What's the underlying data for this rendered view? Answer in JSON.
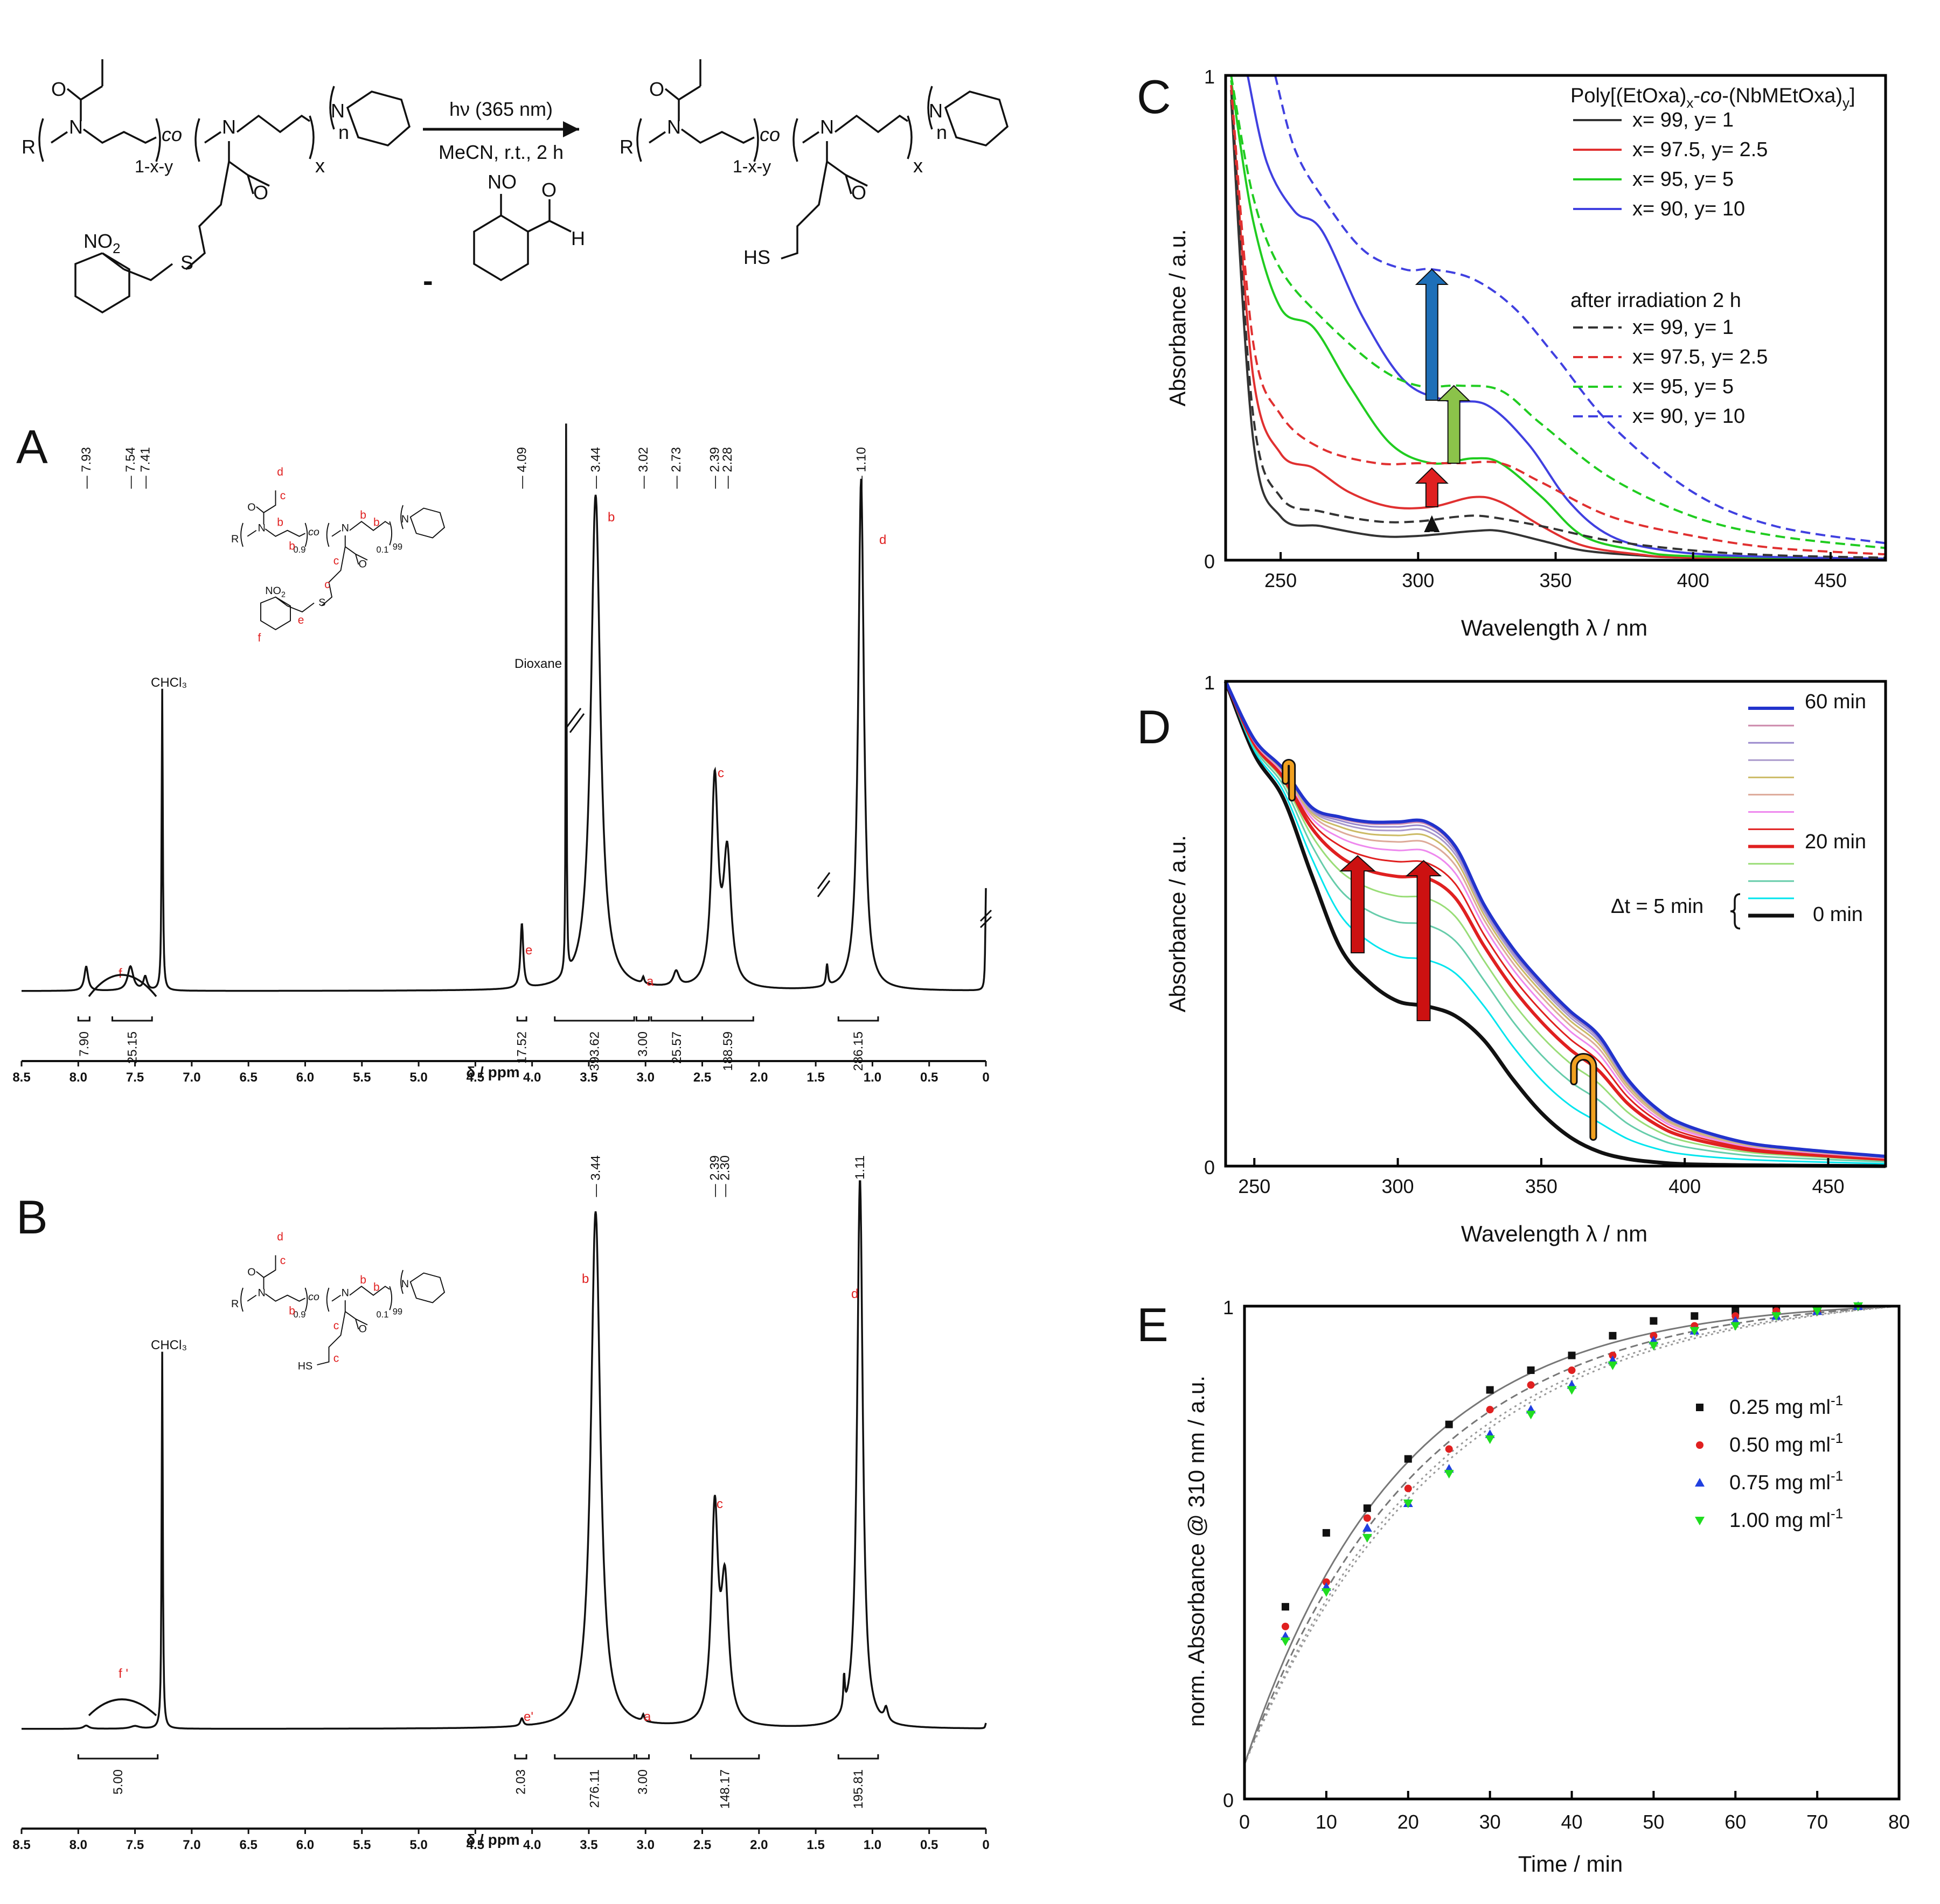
{
  "scheme": {
    "conditions_top": "hν (365 nm)",
    "conditions_bottom": "MeCN, r.t., 2 h",
    "byproduct_sign": "-",
    "labels": {
      "R": "R",
      "co": "co",
      "n": "n",
      "x": "x",
      "N": "N",
      "O": "O",
      "S": "S",
      "NO2": "NO",
      "NO2_sub": "2",
      "NO": "NO",
      "H": "H",
      "HS": "HS",
      "sub_1xy": "1-x-y"
    }
  },
  "panel_labels": {
    "A": "A",
    "B": "B",
    "C": "C",
    "D": "D",
    "E": "E"
  },
  "nmr_A": {
    "peak_labels_top": [
      "7.93",
      "7.54",
      "7.41",
      "4.09",
      "3.44",
      "3.02",
      "2.73",
      "2.39",
      "2.28",
      "1.10"
    ],
    "integrals": [
      "7.90",
      "25.15",
      "17.52",
      "393.62",
      "3.00",
      "25.57",
      "188.59",
      "286.15"
    ],
    "solvent_labels": [
      "CHCl₃",
      "Dioxane"
    ],
    "assignments": [
      "f",
      "e",
      "b",
      "a",
      "c",
      "d"
    ],
    "struct": {
      "sub1": "0.9",
      "sub2": "0.1",
      "sub3": "99",
      "labels": [
        "d",
        "c",
        "b",
        "b",
        "b",
        "b",
        "c",
        "c",
        "e",
        "f"
      ]
    },
    "x_ticks": [
      "8.5",
      "8.0",
      "7.5",
      "7.0",
      "6.5",
      "6.0",
      "5.5",
      "5.0",
      "4.5",
      "4.0",
      "3.5",
      "3.0",
      "2.5",
      "2.0",
      "1.5",
      "1.0",
      "0.5",
      "0"
    ],
    "x_label": "δ / ppm"
  },
  "nmr_B": {
    "peak_labels_top": [
      "3.44",
      "2.39",
      "2.30",
      "1.11"
    ],
    "integrals": [
      "5.00",
      "2.03",
      "276.11",
      "3.00",
      "148.17",
      "195.81"
    ],
    "solvent_labels": [
      "CHCl₃"
    ],
    "assignments": [
      "f '",
      "e'",
      "b",
      "a",
      "c",
      "d"
    ],
    "struct": {
      "sub1": "0.9",
      "sub2": "0.1",
      "sub3": "99",
      "labels": [
        "d",
        "c",
        "b",
        "b",
        "b",
        "c",
        "c"
      ]
    },
    "x_ticks": [
      "8.5",
      "8.0",
      "7.5",
      "7.0",
      "6.5",
      "6.0",
      "5.5",
      "5.0",
      "4.5",
      "4.0",
      "3.5",
      "3.0",
      "2.5",
      "2.0",
      "1.5",
      "1.0",
      "0.5",
      "0"
    ],
    "x_label": "δ / ppm"
  },
  "chart_data": [
    {
      "id": "C",
      "type": "line",
      "xlabel": "Wavelength λ / nm",
      "ylabel": "Absorbance / a.u.",
      "xlim": [
        230,
        470
      ],
      "ylim": [
        0,
        1
      ],
      "x_ticks": [
        "250",
        "300",
        "350",
        "400",
        "450"
      ],
      "y_ticks": [
        "0",
        "1"
      ],
      "legend_title": "Poly[(EtOxa)x-co-(NbMEtOxa)y]",
      "legend_title_parts": [
        "Poly[(EtOxa)",
        "x",
        "-",
        "co",
        "-(NbMEtOxa)",
        "y",
        "]"
      ],
      "legend_subtitle": "after irradiation 2 h",
      "series": [
        {
          "name": "x= 99,    y= 1",
          "color": "#333333",
          "dash": false,
          "x": [
            232,
            240,
            250,
            265,
            285,
            300,
            320,
            330,
            345,
            360,
            380,
            400,
            470
          ],
          "y": [
            0.95,
            0.25,
            0.09,
            0.07,
            0.05,
            0.05,
            0.06,
            0.06,
            0.04,
            0.02,
            0.01,
            0.005,
            0.002
          ]
        },
        {
          "name": "x= 97.5, y= 2.5",
          "color": "#e03030",
          "dash": false,
          "x": [
            232,
            240,
            250,
            262,
            275,
            290,
            305,
            320,
            330,
            345,
            360,
            380,
            400,
            470
          ],
          "y": [
            0.97,
            0.38,
            0.22,
            0.19,
            0.14,
            0.11,
            0.11,
            0.13,
            0.12,
            0.07,
            0.03,
            0.012,
            0.005,
            0.002
          ]
        },
        {
          "name": "x= 95,    y= 5",
          "color": "#20cc20",
          "dash": false,
          "x": [
            232,
            240,
            250,
            262,
            275,
            290,
            305,
            320,
            330,
            345,
            360,
            380,
            400,
            470
          ],
          "y": [
            0.99,
            0.7,
            0.52,
            0.48,
            0.36,
            0.24,
            0.2,
            0.21,
            0.2,
            0.13,
            0.05,
            0.02,
            0.008,
            0.003
          ]
        },
        {
          "name": "x= 90,    y= 10",
          "color": "#4040e0",
          "dash": false,
          "x": [
            238,
            245,
            255,
            265,
            280,
            295,
            310,
            325,
            340,
            355,
            370,
            390,
            420,
            470
          ],
          "y": [
            1.0,
            0.82,
            0.72,
            0.68,
            0.5,
            0.37,
            0.33,
            0.32,
            0.24,
            0.12,
            0.05,
            0.02,
            0.008,
            0.003
          ]
        },
        {
          "name": "x= 99,    y= 1",
          "color": "#333333",
          "dash": true,
          "x": [
            232,
            240,
            250,
            265,
            285,
            300,
            315,
            325,
            345,
            370,
            400,
            430,
            470
          ],
          "y": [
            0.97,
            0.3,
            0.13,
            0.1,
            0.08,
            0.08,
            0.09,
            0.09,
            0.07,
            0.04,
            0.02,
            0.01,
            0.005
          ]
        },
        {
          "name": "x= 97.5, y= 2.5",
          "color": "#e03030",
          "dash": true,
          "x": [
            232,
            240,
            250,
            265,
            285,
            300,
            315,
            330,
            345,
            370,
            400,
            430,
            470
          ],
          "y": [
            0.98,
            0.45,
            0.3,
            0.23,
            0.2,
            0.2,
            0.2,
            0.2,
            0.16,
            0.09,
            0.05,
            0.025,
            0.012
          ]
        },
        {
          "name": "x= 95,    y= 5",
          "color": "#20cc20",
          "dash": true,
          "x": [
            232,
            240,
            250,
            265,
            285,
            300,
            315,
            330,
            345,
            370,
            400,
            430,
            470
          ],
          "y": [
            1.0,
            0.75,
            0.6,
            0.5,
            0.4,
            0.36,
            0.36,
            0.35,
            0.28,
            0.17,
            0.09,
            0.05,
            0.025
          ]
        },
        {
          "name": "x= 90,    y= 10",
          "color": "#4040e0",
          "dash": true,
          "x": [
            248,
            255,
            265,
            280,
            295,
            305,
            320,
            335,
            350,
            370,
            400,
            430,
            470
          ],
          "y": [
            1.0,
            0.85,
            0.75,
            0.64,
            0.6,
            0.6,
            0.58,
            0.52,
            0.42,
            0.28,
            0.14,
            0.07,
            0.035
          ]
        }
      ],
      "arrows": [
        {
          "x": 305,
          "y0": 0.06,
          "y1": 0.09,
          "color": "#111111"
        },
        {
          "x": 305,
          "y0": 0.11,
          "y1": 0.19,
          "color": "#e02020"
        },
        {
          "x": 313,
          "y0": 0.2,
          "y1": 0.36,
          "color": "#8bc34a"
        },
        {
          "x": 305,
          "y0": 0.33,
          "y1": 0.6,
          "color": "#1e6fb8"
        }
      ]
    },
    {
      "id": "D",
      "type": "line",
      "xlabel": "Wavelength λ / nm",
      "ylabel": "Absorbance / a.u.",
      "xlim": [
        240,
        470
      ],
      "ylim": [
        0,
        1
      ],
      "x_ticks": [
        "250",
        "300",
        "350",
        "400",
        "450"
      ],
      "y_ticks": [
        "0",
        "1"
      ],
      "legend": {
        "top": "60 min",
        "mid": "20 min",
        "bottom": "0 min",
        "interval": "Δt = 5 min"
      },
      "colors": [
        "#111111",
        "#00e5ee",
        "#66ccaa",
        "#99dd77",
        "#88bbee",
        "#e02020",
        "#ee88ee",
        "#ddaa99",
        "#ccbb66",
        "#aa99cc",
        "#9988cc",
        "#cc88aa",
        "#66bb88",
        "#2233cc"
      ],
      "time_min": [
        0,
        5,
        10,
        15,
        20,
        25,
        30,
        35,
        40,
        45,
        50,
        55,
        60
      ],
      "x": [
        240,
        250,
        260,
        270,
        280,
        290,
        300,
        310,
        320,
        330,
        340,
        350,
        360,
        370,
        380,
        390,
        400,
        420,
        440,
        470
      ],
      "t0": [
        1.0,
        0.85,
        0.76,
        0.6,
        0.45,
        0.38,
        0.34,
        0.33,
        0.31,
        0.26,
        0.18,
        0.11,
        0.06,
        0.03,
        0.015,
        0.008,
        0.004,
        0.002,
        0.001,
        0.0
      ],
      "t60": [
        1.0,
        0.88,
        0.82,
        0.74,
        0.72,
        0.71,
        0.71,
        0.71,
        0.66,
        0.54,
        0.45,
        0.38,
        0.32,
        0.27,
        0.18,
        0.12,
        0.085,
        0.05,
        0.035,
        0.02
      ],
      "arrows": [
        {
          "x": 286,
          "y0": 0.44,
          "y1": 0.64,
          "color": "#cc1111"
        },
        {
          "x": 309,
          "y0": 0.3,
          "y1": 0.63,
          "color": "#cc1111"
        }
      ],
      "hooks": [
        {
          "x": 262,
          "y_low": 0.76,
          "y_top": 0.85,
          "color": "#f0a020"
        },
        {
          "x": 367,
          "y_low": 0.06,
          "y_top": 0.23,
          "color": "#f0a020"
        }
      ]
    },
    {
      "id": "E",
      "type": "scatter",
      "xlabel": "Time / min",
      "ylabel": "norm. Absorbance @ 310 nm / a.u.",
      "xlim": [
        0,
        80
      ],
      "ylim": [
        0,
        1
      ],
      "x_ticks": [
        "0",
        "10",
        "20",
        "30",
        "40",
        "50",
        "60",
        "70",
        "80"
      ],
      "y_ticks": [
        "0",
        "1"
      ],
      "series": [
        {
          "name": "0.25 mg ml",
          "sup": "-1",
          "color": "#111111",
          "marker": "square",
          "x": [
            5,
            10,
            15,
            20,
            25,
            30,
            35,
            40,
            45,
            50,
            55,
            60,
            65,
            70,
            75
          ],
          "y": [
            0.39,
            0.54,
            0.59,
            0.69,
            0.76,
            0.83,
            0.87,
            0.9,
            0.94,
            0.97,
            0.98,
            0.99,
            0.99,
            0.99,
            1.0
          ]
        },
        {
          "name": "0.50 mg ml",
          "sup": "-1",
          "color": "#e02020",
          "marker": "circle",
          "x": [
            5,
            10,
            15,
            20,
            25,
            30,
            35,
            40,
            45,
            50,
            55,
            60,
            65,
            70,
            75
          ],
          "y": [
            0.35,
            0.44,
            0.57,
            0.63,
            0.71,
            0.79,
            0.84,
            0.87,
            0.9,
            0.94,
            0.96,
            0.98,
            0.99,
            0.99,
            1.0
          ]
        },
        {
          "name": "0.75 mg ml",
          "sup": "-1",
          "color": "#2040e0",
          "marker": "triangle",
          "x": [
            5,
            10,
            15,
            20,
            25,
            30,
            35,
            40,
            45,
            50,
            55,
            60,
            65,
            70,
            75
          ],
          "y": [
            0.33,
            0.43,
            0.55,
            0.6,
            0.67,
            0.74,
            0.79,
            0.84,
            0.89,
            0.93,
            0.95,
            0.97,
            0.98,
            0.99,
            1.0
          ]
        },
        {
          "name": "1.00 mg ml",
          "sup": "-1",
          "color": "#20dd20",
          "marker": "triangle-down",
          "x": [
            5,
            10,
            15,
            20,
            25,
            30,
            35,
            40,
            45,
            50,
            55,
            60,
            65,
            70,
            75
          ],
          "y": [
            0.32,
            0.42,
            0.53,
            0.6,
            0.66,
            0.73,
            0.78,
            0.83,
            0.88,
            0.92,
            0.95,
            0.96,
            0.98,
            0.99,
            1.0
          ]
        }
      ],
      "fits": [
        {
          "color": "#777777",
          "style": "solid",
          "tau": 19
        },
        {
          "color": "#777777",
          "style": "dash",
          "tau": 21.5
        },
        {
          "color": "#999999",
          "style": "dot",
          "tau": 23.5
        },
        {
          "color": "#999999",
          "style": "dot",
          "tau": 24.5
        }
      ],
      "fit_y0": 0.07
    }
  ]
}
